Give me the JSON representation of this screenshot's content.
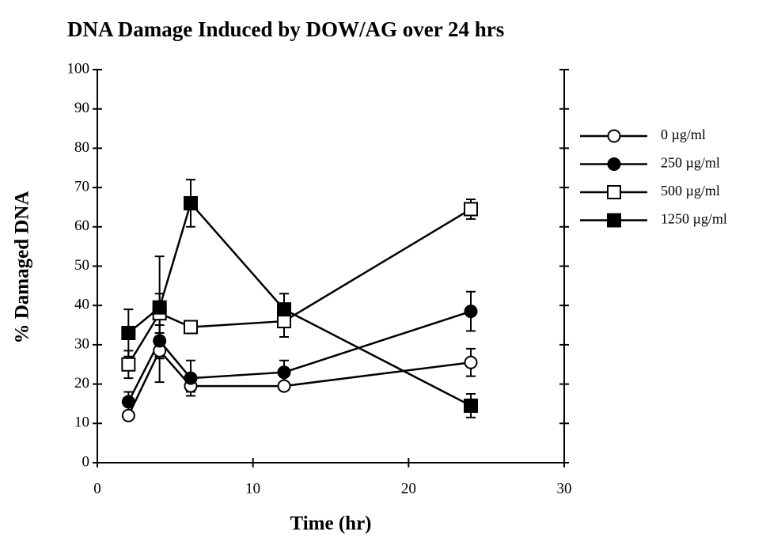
{
  "chart_data": {
    "type": "line",
    "title": "DNA Damage Induced by DOW/AG over 24 hrs",
    "x_label": "Time (hr)",
    "y_label": "% Damaged DNA",
    "x": [
      2,
      4,
      6,
      12,
      24
    ],
    "series": [
      {
        "name": "0 µg/ml",
        "color": "#000000",
        "marker": "circle",
        "filled": false,
        "values": [
          12,
          28.5,
          19.5,
          19.5,
          25.5
        ],
        "errors": [
          1,
          8,
          1.5,
          0.5,
          3.5
        ]
      },
      {
        "name": "250 µg/ml",
        "color": "#000000",
        "marker": "circle",
        "filled": true,
        "values": [
          15.5,
          31,
          21.5,
          23,
          38.5
        ],
        "errors": [
          2.5,
          4,
          4.5,
          3,
          5
        ]
      },
      {
        "name": "500 µg/ml",
        "color": "#000000",
        "marker": "square",
        "filled": false,
        "values": [
          25,
          38,
          34.5,
          36,
          64.5
        ],
        "errors": [
          3.5,
          5,
          1,
          4,
          2.5
        ]
      },
      {
        "name": "1250 µg/ml",
        "color": "#000000",
        "marker": "square",
        "filled": true,
        "values": [
          33,
          39.5,
          66,
          39,
          14.5
        ],
        "errors": [
          6,
          13,
          6,
          4,
          3
        ]
      }
    ],
    "xlim": [
      0,
      30
    ],
    "xticks": [
      0,
      10,
      20,
      30
    ],
    "ylim": [
      0,
      100
    ],
    "yticks": [
      0,
      10,
      20,
      30,
      40,
      50,
      60,
      70,
      80,
      90,
      100
    ],
    "grid": false,
    "legend": "right"
  }
}
